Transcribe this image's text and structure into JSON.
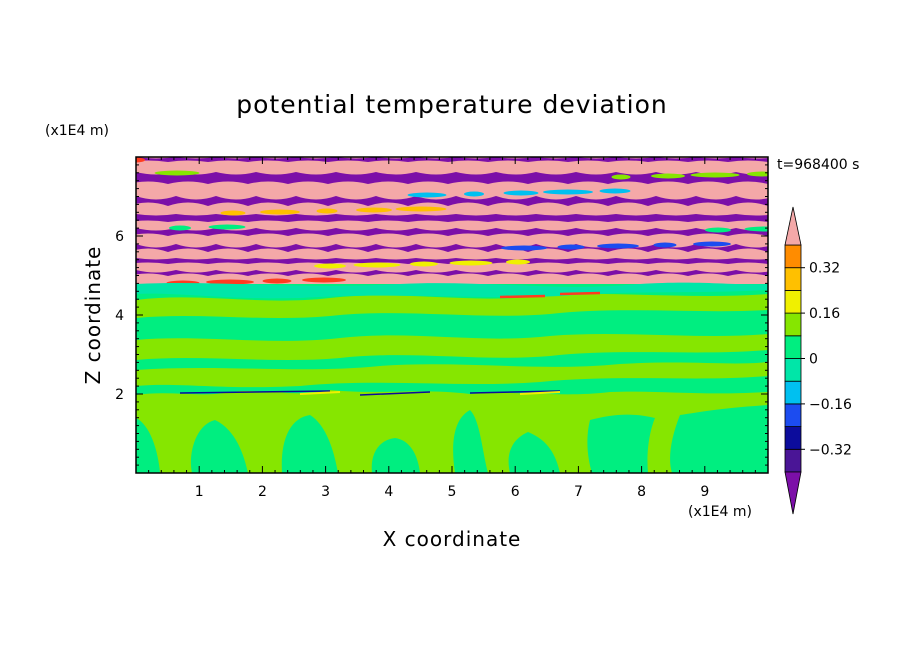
{
  "chart_data": {
    "type": "heatmap",
    "title": "potential temperature deviation",
    "xlabel": "X coordinate",
    "ylabel": "Z coordinate",
    "x_units": "(x1E4 m)",
    "y_units": "(x1E4 m)",
    "time_label": "t=968400 s",
    "xlim": [
      0,
      10
    ],
    "ylim": [
      0,
      8
    ],
    "x_ticks": [
      1,
      2,
      3,
      4,
      5,
      6,
      7,
      8,
      9
    ],
    "y_ticks": [
      2,
      4,
      6
    ],
    "x_tick_labels": [
      "1",
      "2",
      "3",
      "4",
      "5",
      "6",
      "7",
      "8",
      "9"
    ],
    "y_tick_labels": [
      "2",
      "4",
      "6"
    ],
    "colorbar": {
      "levels": [
        -0.48,
        -0.4,
        -0.32,
        -0.24,
        -0.16,
        -0.08,
        0,
        0.08,
        0.16,
        0.24,
        0.32,
        0.4,
        0.48
      ],
      "tick_labels": [
        "0.32",
        "0.16",
        "0",
        "−0.16",
        "−0.32"
      ],
      "tick_values": [
        0.32,
        0.16,
        0,
        -0.16,
        -0.32
      ],
      "colors": [
        "#7c0fa8",
        "#4a1596",
        "#0c0c9c",
        "#1c4cf0",
        "#00c0f0",
        "#00e6a8",
        "#00ee80",
        "#86e600",
        "#f0f000",
        "#ffc000",
        "#ff8c00",
        "#ff3c20",
        "#f4a8a8"
      ],
      "extend": "both"
    },
    "regions": [
      {
        "z_range": [
          0,
          2.1
        ],
        "description_value": "near 0 (green / light-green plumes)"
      },
      {
        "z_range": [
          2.1,
          4.8
        ],
        "description_value": "near 0 (banded green)"
      },
      {
        "z_range": [
          4.8,
          8
        ],
        "description_value": "alternating +0.48 and -0.48 bands"
      }
    ]
  }
}
